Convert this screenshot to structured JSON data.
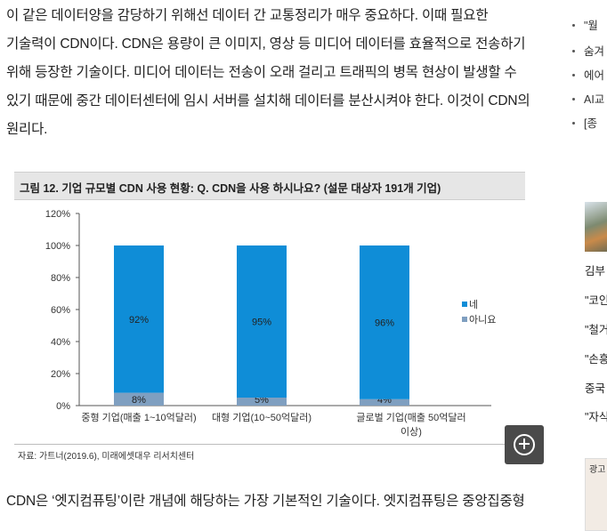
{
  "article": {
    "para1_lines": [
      "이 같은 데이터양을 감당하기 위해선 데이터 간 교통정리가 매우 중요하다. 이때 필요한",
      "기술력이 CDN이다. CDN은 용량이 큰 이미지, 영상 등 미디어 데이터를 효율적으로 전송하기",
      "위해 등장한 기술이다. 미디어 데이터는 전송이 오래 걸리고 트래픽의 병목 현상이 발생할 수",
      "있기 때문에 중간 데이터센터에 임시 서버를 설치해 데이터를 분산시켜야 한다. 이것이 CDN의",
      "원리다."
    ],
    "para2": "CDN은 ‘엣지컴퓨팅’이란 개념에 해당하는 가장 기본적인 기술이다. 엣지컴퓨팅은 중앙집중형"
  },
  "figure": {
    "title": "그림 12. 기업 규모별 CDN 사용 현황: Q. CDN을 사용 하시나요? (설문 대상자 191개 기업)",
    "source": "자료: 가트너(2019.6), 미래에셋대우 리서치센터",
    "zoom_icon": "zoom-in-icon"
  },
  "chart_data": {
    "type": "bar",
    "stacked": true,
    "categories": [
      "중형 기업(매출 1~10억달러)",
      "대형 기업(10~50억달러)",
      "글로벌 기업(매출 50억달러 이상)"
    ],
    "category_lines": [
      [
        "중형 기업(매출 1~10억달러)"
      ],
      [
        "대형 기업(10~50억달러)"
      ],
      [
        "글로벌 기업(매출 50억달러",
        "이상)"
      ]
    ],
    "series": [
      {
        "name": "아니요",
        "values": [
          8,
          5,
          4
        ],
        "labels": [
          "8%",
          "5%",
          "4%"
        ],
        "color": "#7f9fc0"
      },
      {
        "name": "네",
        "values": [
          92,
          95,
          96
        ],
        "labels": [
          "92%",
          "95%",
          "96%"
        ],
        "color": "#0f8dd7"
      }
    ],
    "legend_order": [
      "네",
      "아니요"
    ],
    "legend_position": "right",
    "yticks": [
      0,
      20,
      40,
      60,
      80,
      100,
      120
    ],
    "ytick_labels": [
      "0%",
      "20%",
      "40%",
      "60%",
      "80%",
      "100%",
      "120%"
    ],
    "ylim": [
      0,
      120
    ],
    "grid": false
  },
  "sidebar": {
    "links": [
      "\"월",
      "숨겨",
      "에어",
      "AI교",
      "[종"
    ],
    "news": [
      "김부",
      "\"코인",
      "\"철거",
      "\"손흥",
      "중국",
      "\"자식"
    ],
    "ad_label": "광고"
  }
}
